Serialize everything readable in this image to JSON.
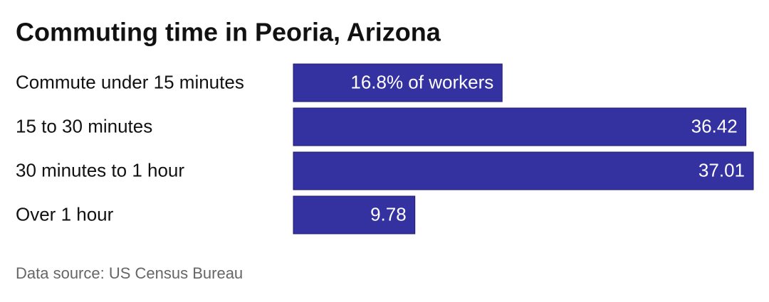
{
  "chart_data": {
    "type": "bar",
    "orientation": "horizontal",
    "title": "Commuting time in Peoria, Arizona",
    "categories": [
      "Commute under 15 minutes",
      "15 to 30 minutes",
      "30 minutes to 1 hour",
      "Over 1 hour"
    ],
    "values": [
      16.8,
      36.42,
      37.01,
      9.78
    ],
    "value_labels": [
      "16.8% of workers",
      "36.42",
      "37.01",
      "9.78"
    ],
    "color": "#3431a0",
    "source": "Data source: US Census Bureau"
  }
}
